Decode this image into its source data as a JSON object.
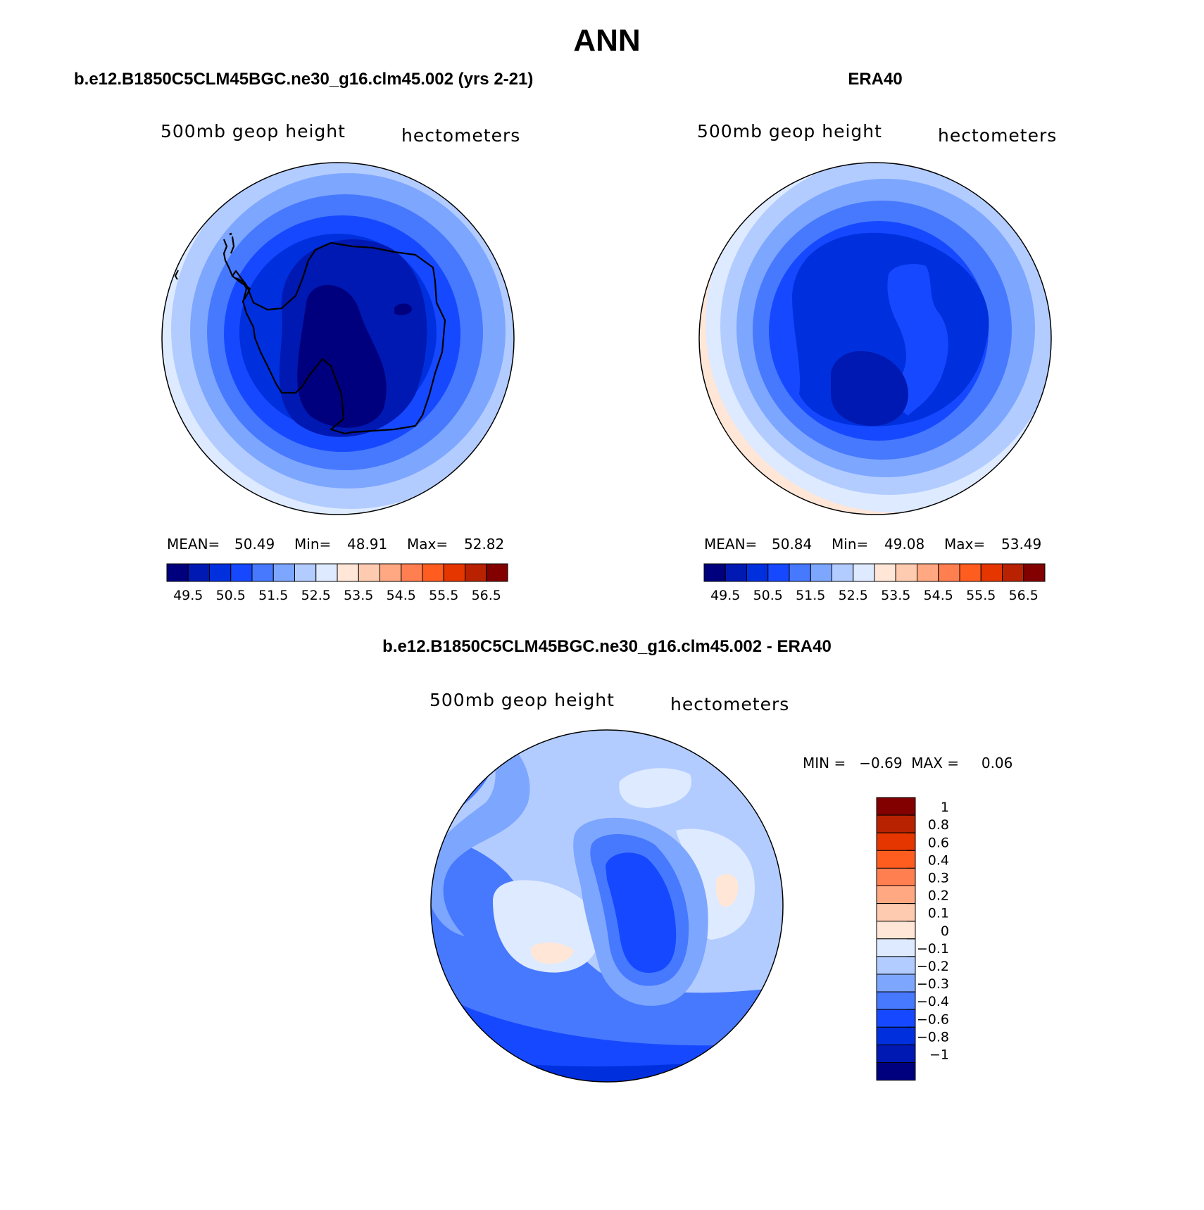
{
  "figure_title": "ANN",
  "panels": [
    {
      "id": "model",
      "header": "b.e12.B1850C5CLM45BGC.ne30_g16.clm45.002 (yrs 2-21)",
      "left_label": "500mb geop height",
      "right_label": "hectometers",
      "stats": {
        "mean_label": "MEAN=",
        "mean": "50.49",
        "min_label": "Min=",
        "min": "48.91",
        "max_label": "Max=",
        "max": "52.82"
      }
    },
    {
      "id": "obs",
      "header": "ERA40",
      "left_label": "500mb geop height",
      "right_label": "hectometers",
      "stats": {
        "mean_label": "MEAN=",
        "mean": "50.84",
        "min_label": "Min=",
        "min": "49.08",
        "max_label": "Max=",
        "max": "53.49"
      }
    },
    {
      "id": "diff",
      "header": "b.e12.B1850C5CLM45BGC.ne30_g16.clm45.002 - ERA40",
      "left_label": "500mb geop height",
      "right_label": "hectometers",
      "stats_text": "MIN =   −0.69  MAX =     0.06"
    }
  ],
  "chart_data": [
    {
      "type": "heatmap",
      "projection": "south-polar-stereographic",
      "title": "500mb geop height",
      "units": "hectometers",
      "source": "b.e12.B1850C5CLM45BGC.ne30_g16.clm45.002 (yrs 2-21)",
      "mean": 50.49,
      "min": 48.91,
      "max": 52.82,
      "contour_levels_by_ring": [
        49.25,
        49.75,
        50.25,
        50.75,
        51.25,
        51.75,
        52.25,
        52.75
      ],
      "colorbar": {
        "tick_labels": [
          "49.5",
          "50.5",
          "51.5",
          "52.5",
          "53.5",
          "54.5",
          "55.5",
          "56.5"
        ],
        "colors": [
          "#00007f",
          "#0019b2",
          "#0030de",
          "#1649ff",
          "#4779ff",
          "#7da6ff",
          "#b3ccff",
          "#deeaff",
          "#ffe6d6",
          "#ffcbb0",
          "#ffa882",
          "#ff7f50",
          "#ff5c1f",
          "#e53600",
          "#b82200",
          "#830000"
        ]
      }
    },
    {
      "type": "heatmap",
      "projection": "south-polar-stereographic",
      "title": "500mb geop height",
      "units": "hectometers",
      "source": "ERA40",
      "mean": 50.84,
      "min": 49.08,
      "max": 53.49,
      "contour_levels_by_ring": [
        49.75,
        50.25,
        50.75,
        51.25,
        51.75,
        52.25,
        52.75,
        53.25
      ],
      "colorbar": {
        "tick_labels": [
          "49.5",
          "50.5",
          "51.5",
          "52.5",
          "53.5",
          "54.5",
          "55.5",
          "56.5"
        ],
        "colors": [
          "#00007f",
          "#0019b2",
          "#0030de",
          "#1649ff",
          "#4779ff",
          "#7da6ff",
          "#b3ccff",
          "#deeaff",
          "#ffe6d6",
          "#ffcbb0",
          "#ffa882",
          "#ff7f50",
          "#ff5c1f",
          "#e53600",
          "#b82200",
          "#830000"
        ]
      }
    },
    {
      "type": "heatmap",
      "projection": "south-polar-stereographic",
      "title": "500mb geop height",
      "units": "hectometers",
      "source": "b.e12.B1850C5CLM45BGC.ne30_g16.clm45.002 - ERA40",
      "min": -0.69,
      "max": 0.06,
      "colorbar": {
        "orientation": "vertical",
        "levels": [
          "1",
          "0.8",
          "0.6",
          "0.4",
          "0.3",
          "0.2",
          "0.1",
          "0",
          "−0.1",
          "−0.2",
          "−0.3",
          "−0.4",
          "−0.6",
          "−0.8",
          "−1"
        ],
        "colors_top_to_bottom": [
          "#830000",
          "#b82200",
          "#e53600",
          "#ff5c1f",
          "#ff7f50",
          "#ffa882",
          "#ffcbb0",
          "#ffe6d6",
          "#deeaff",
          "#b3ccff",
          "#7da6ff",
          "#4779ff",
          "#1649ff",
          "#0030de",
          "#0019b2",
          "#00007f"
        ]
      }
    }
  ]
}
